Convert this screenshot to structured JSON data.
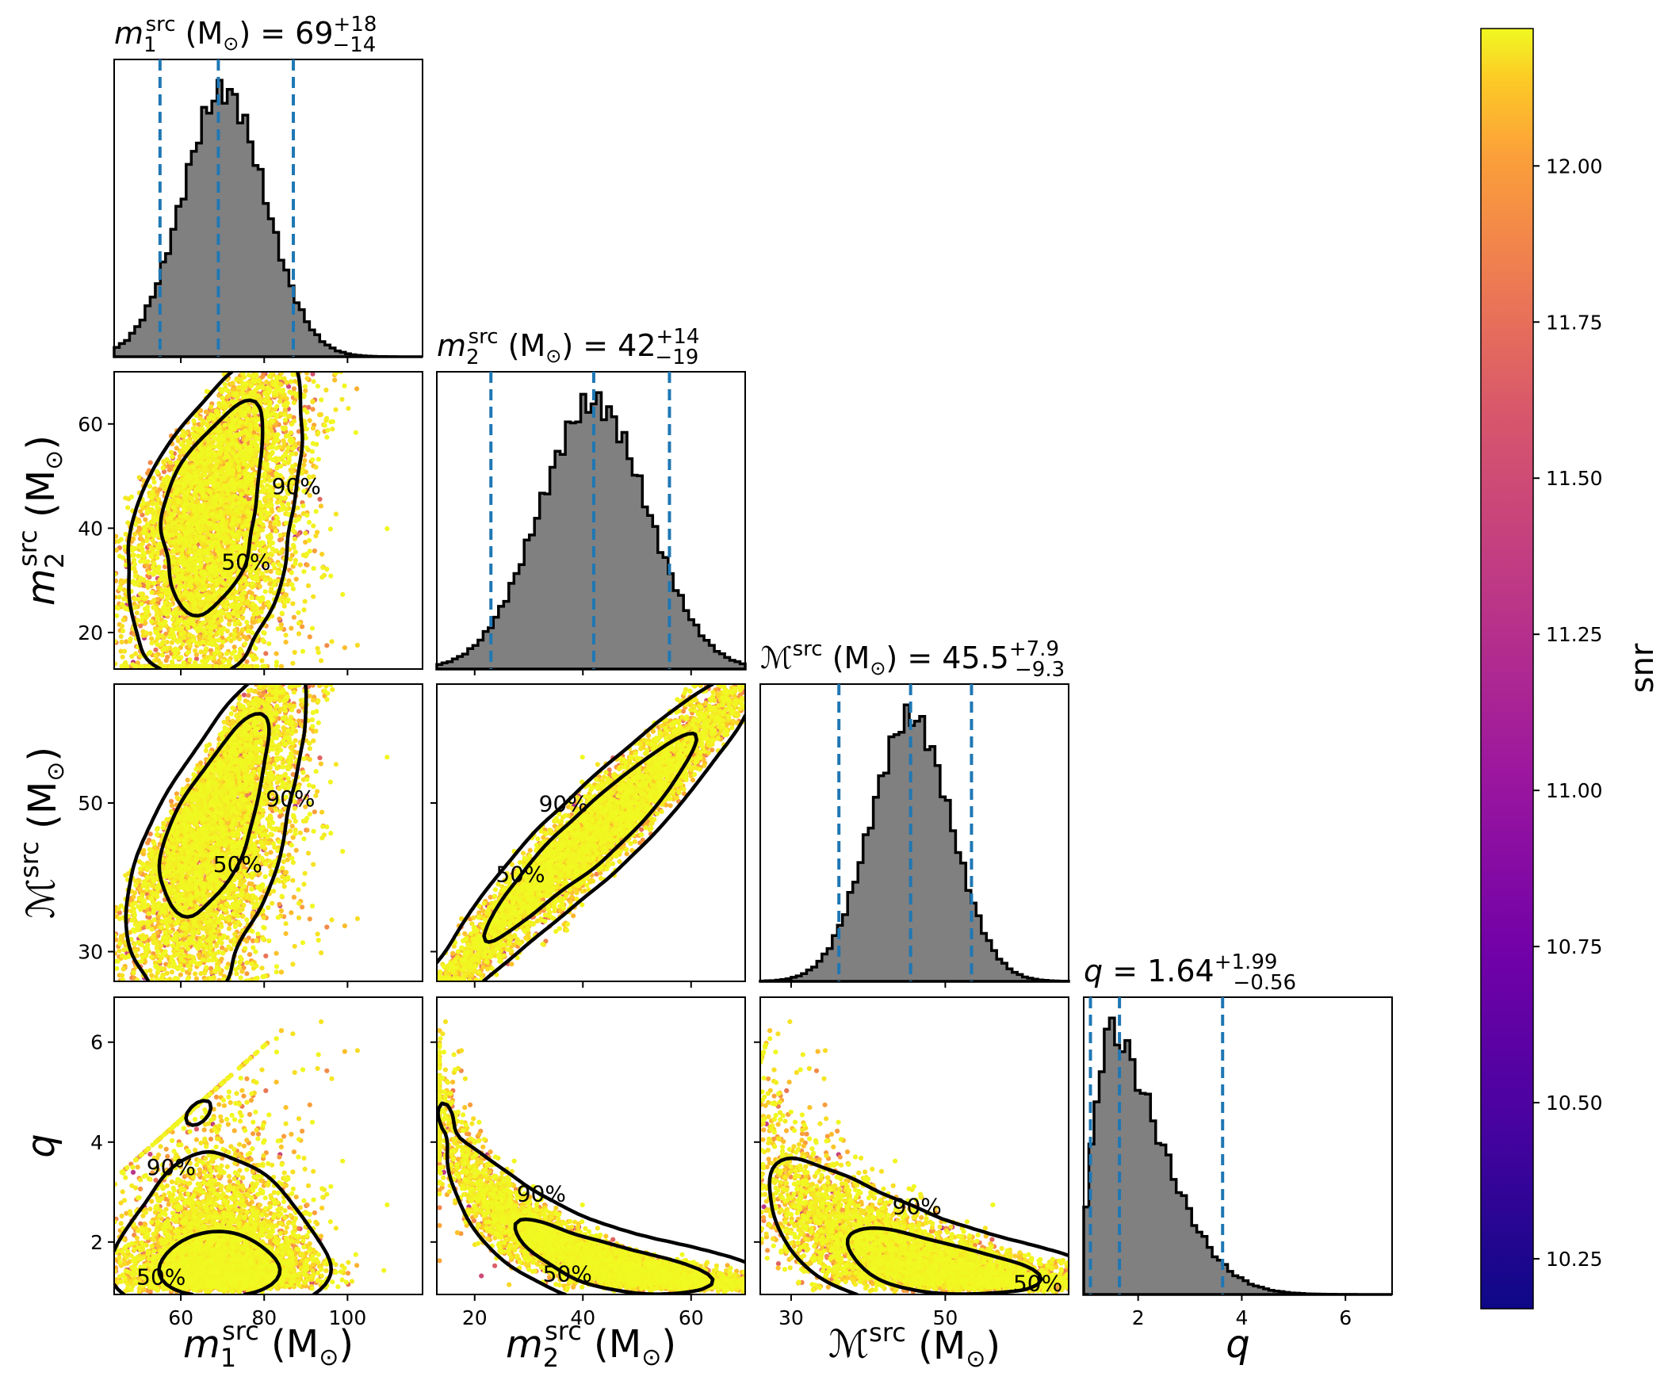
{
  "chart_data": {
    "type": "corner",
    "parameters": [
      {
        "key": "m1",
        "label_main": "m",
        "label_sub": "1",
        "label_sup": "src",
        "unit": "(M",
        "unit_sub": "⊙",
        "unit_close": ")",
        "range": [
          44,
          118
        ],
        "ticks": [
          60,
          80,
          100
        ],
        "title_value": "69",
        "title_plus": "+18",
        "title_minus": "−14",
        "median": 69,
        "lower": 55,
        "upper": 87
      },
      {
        "key": "m2",
        "label_main": "m",
        "label_sub": "2",
        "label_sup": "src",
        "unit": "(M",
        "unit_sub": "⊙",
        "unit_close": ")",
        "range": [
          13,
          70
        ],
        "ticks": [
          20,
          40,
          60
        ],
        "title_value": "42",
        "title_plus": "+14",
        "title_minus": "−19",
        "median": 42,
        "lower": 23,
        "upper": 56
      },
      {
        "key": "mc",
        "label_main": "ℳ",
        "label_sub": "",
        "label_sup": "src",
        "unit": "(M",
        "unit_sub": "⊙",
        "unit_close": ")",
        "range": [
          26,
          66
        ],
        "ticks": [
          30,
          50
        ],
        "title_value": "45.5",
        "title_plus": "+7.9",
        "title_minus": "−9.3",
        "median": 45.5,
        "lower": 36.2,
        "upper": 53.4
      },
      {
        "key": "q",
        "label_main": "q",
        "label_sub": "",
        "label_sup": "",
        "unit": "",
        "unit_sub": "",
        "unit_close": "",
        "range": [
          0.95,
          6.9
        ],
        "ticks": [
          2,
          4,
          6
        ],
        "title_value": "1.64",
        "title_plus": "+1.99",
        "title_minus": "−0.56",
        "median": 1.64,
        "lower": 1.08,
        "upper": 3.63
      }
    ],
    "marginal_y_ticks": {
      "m2": [
        20,
        40,
        60
      ],
      "mc": [
        30,
        50
      ],
      "q": [
        2,
        4,
        6
      ]
    },
    "histograms": {
      "m1": {
        "mean": 69.5,
        "sd": 10.2,
        "skew": 0.3
      },
      "m2": {
        "mean": 43,
        "sd": 10.5,
        "skew": -0.45
      },
      "mc": {
        "mean": 46,
        "sd": 5.4,
        "skew": -0.35
      },
      "q": {
        "mean": 1.5,
        "sd": 0.9,
        "skew": 2.5
      }
    },
    "contour_labels": [
      "50%",
      "90%"
    ],
    "colorbar": {
      "label": "snr",
      "min": 10.17,
      "max": 12.22,
      "ticks": [
        10.25,
        10.5,
        10.75,
        11.0,
        11.25,
        11.5,
        11.75,
        12.0
      ],
      "tick_labels": [
        "10.25",
        "10.50",
        "10.75",
        "11.00",
        "11.25",
        "11.50",
        "11.75",
        "12.00"
      ],
      "colormap": "plasma"
    },
    "colors": {
      "hist_fill": "#808080",
      "hist_edge": "#000000",
      "quantile_line": "#1f77b4",
      "contour": "#000000"
    }
  }
}
